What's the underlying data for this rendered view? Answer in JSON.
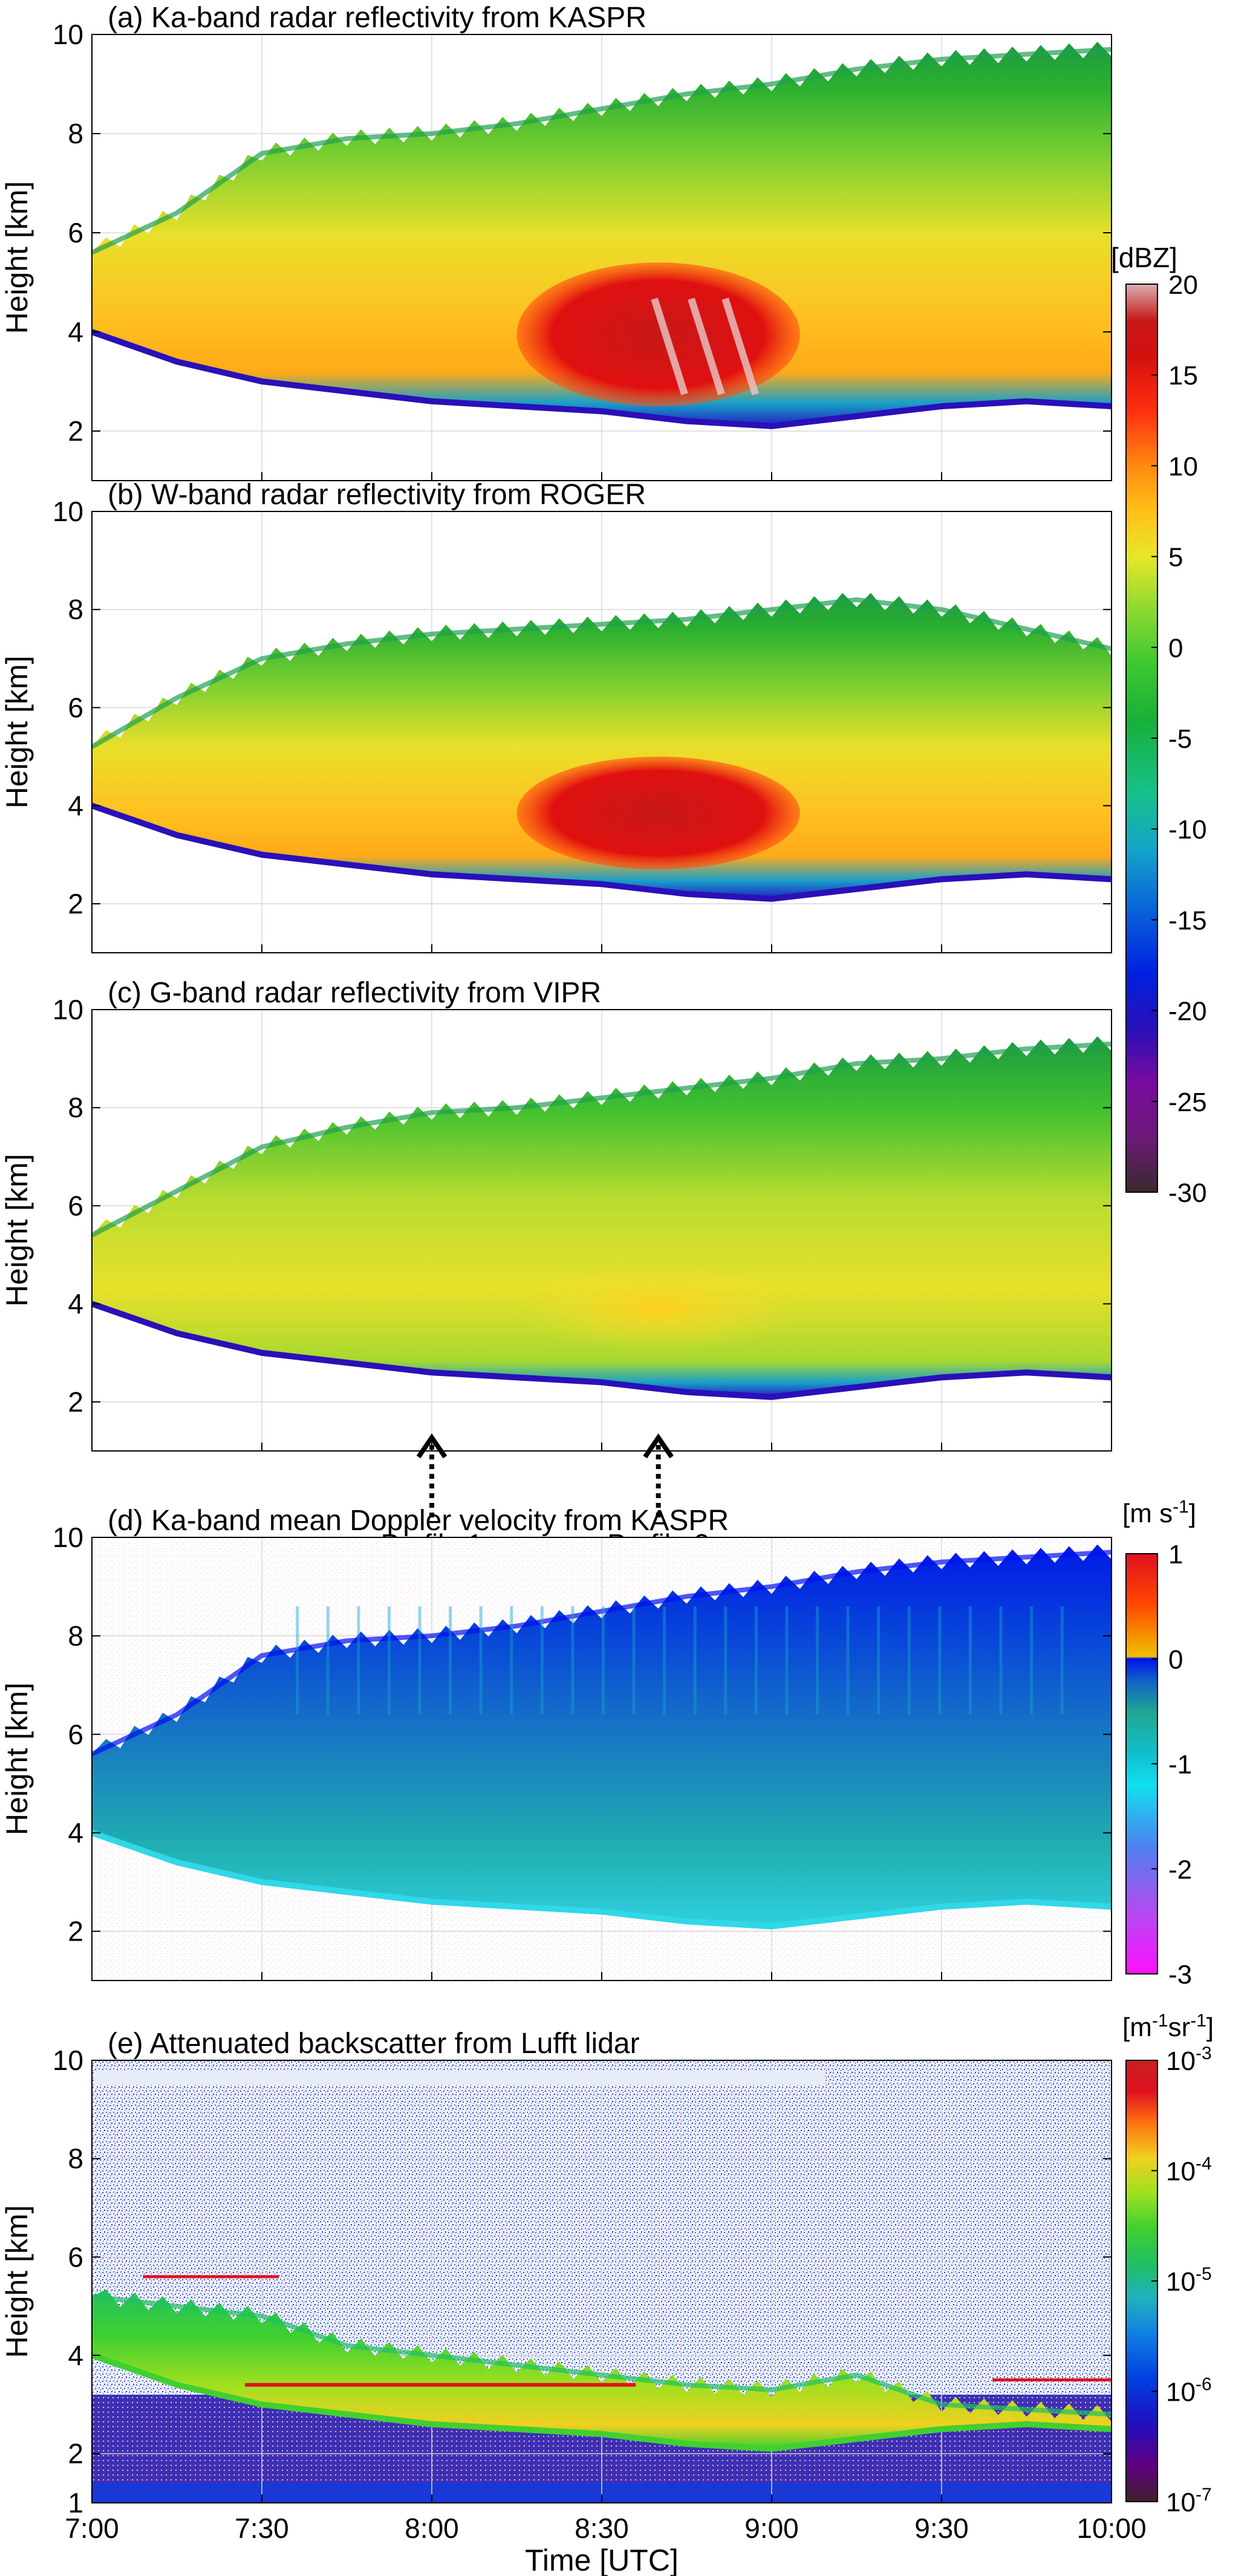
{
  "chart_data": [
    {
      "type": "heatmap",
      "panel": "a",
      "title": "(a) Ka-band radar reflectivity from KASPR",
      "ylabel": "Height [km]",
      "ylim": [
        1,
        10
      ],
      "yticks": [
        2,
        4,
        6,
        8,
        10
      ],
      "xlim": [
        "7:00",
        "10:00"
      ],
      "variable": "reflectivity",
      "units": "dBZ",
      "cloud_top_km": [
        [
          7.0,
          5.6
        ],
        [
          7.25,
          6.4
        ],
        [
          7.5,
          7.6
        ],
        [
          7.75,
          7.9
        ],
        [
          8.0,
          8.0
        ],
        [
          8.25,
          8.2
        ],
        [
          8.5,
          8.5
        ],
        [
          8.75,
          8.8
        ],
        [
          9.0,
          9.0
        ],
        [
          9.25,
          9.3
        ],
        [
          9.5,
          9.5
        ],
        [
          9.75,
          9.6
        ],
        [
          10.0,
          9.7
        ]
      ],
      "cloud_base_km": [
        [
          7.0,
          4.0
        ],
        [
          7.25,
          3.4
        ],
        [
          7.5,
          3.0
        ],
        [
          7.75,
          2.8
        ],
        [
          8.0,
          2.6
        ],
        [
          8.25,
          2.5
        ],
        [
          8.5,
          2.4
        ],
        [
          8.75,
          2.2
        ],
        [
          9.0,
          2.1
        ],
        [
          9.25,
          2.3
        ],
        [
          9.5,
          2.5
        ],
        [
          9.75,
          2.6
        ],
        [
          10.0,
          2.5
        ]
      ],
      "core": {
        "start": "8:15",
        "end": "9:05",
        "bottom_km": 2.5,
        "top_km": 5.4,
        "max_dBZ": 20
      }
    },
    {
      "type": "heatmap",
      "panel": "b",
      "title": "(b) W-band radar reflectivity from ROGER",
      "ylabel": "Height [km]",
      "ylim": [
        1,
        10
      ],
      "yticks": [
        2,
        4,
        6,
        8,
        10
      ],
      "xlim": [
        "7:00",
        "10:00"
      ],
      "variable": "reflectivity",
      "units": "dBZ",
      "cloud_top_km": [
        [
          7.0,
          5.2
        ],
        [
          7.25,
          6.2
        ],
        [
          7.5,
          7.0
        ],
        [
          7.75,
          7.3
        ],
        [
          8.0,
          7.5
        ],
        [
          8.25,
          7.6
        ],
        [
          8.5,
          7.7
        ],
        [
          8.75,
          7.8
        ],
        [
          9.0,
          8.0
        ],
        [
          9.25,
          8.2
        ],
        [
          9.5,
          8.0
        ],
        [
          9.75,
          7.6
        ],
        [
          10.0,
          7.2
        ]
      ],
      "cloud_base_km": [
        [
          7.0,
          4.0
        ],
        [
          7.25,
          3.4
        ],
        [
          7.5,
          3.0
        ],
        [
          7.75,
          2.8
        ],
        [
          8.0,
          2.6
        ],
        [
          8.25,
          2.5
        ],
        [
          8.5,
          2.4
        ],
        [
          8.75,
          2.2
        ],
        [
          9.0,
          2.1
        ],
        [
          9.25,
          2.3
        ],
        [
          9.5,
          2.5
        ],
        [
          9.75,
          2.6
        ],
        [
          10.0,
          2.5
        ]
      ],
      "core": {
        "start": "8:15",
        "end": "9:05",
        "bottom_km": 2.7,
        "top_km": 5.0,
        "max_dBZ": 15
      }
    },
    {
      "type": "heatmap",
      "panel": "c",
      "title": "(c) G-band radar reflectivity from VIPR",
      "ylabel": "Height [km]",
      "ylim": [
        1,
        10
      ],
      "yticks": [
        2,
        4,
        6,
        8,
        10
      ],
      "xlim": [
        "7:00",
        "10:00"
      ],
      "variable": "reflectivity",
      "units": "dBZ",
      "cloud_top_km": [
        [
          7.0,
          5.4
        ],
        [
          7.25,
          6.3
        ],
        [
          7.5,
          7.2
        ],
        [
          7.75,
          7.6
        ],
        [
          8.0,
          7.9
        ],
        [
          8.25,
          8.0
        ],
        [
          8.5,
          8.2
        ],
        [
          8.75,
          8.4
        ],
        [
          9.0,
          8.6
        ],
        [
          9.25,
          8.9
        ],
        [
          9.5,
          9.0
        ],
        [
          9.75,
          9.2
        ],
        [
          10.0,
          9.3
        ]
      ],
      "cloud_base_km": [
        [
          7.0,
          4.0
        ],
        [
          7.25,
          3.4
        ],
        [
          7.5,
          3.0
        ],
        [
          7.75,
          2.8
        ],
        [
          8.0,
          2.6
        ],
        [
          8.25,
          2.5
        ],
        [
          8.5,
          2.4
        ],
        [
          8.75,
          2.2
        ],
        [
          9.0,
          2.1
        ],
        [
          9.25,
          2.3
        ],
        [
          9.5,
          2.5
        ],
        [
          9.75,
          2.6
        ],
        [
          10.0,
          2.5
        ]
      ],
      "core": {
        "start": "8:15",
        "end": "9:05",
        "bottom_km": 3.0,
        "top_km": 4.8,
        "max_dBZ": 5
      },
      "annotations": [
        {
          "label": "Profile 1",
          "time": "8:00"
        },
        {
          "label": "Profile 2",
          "time": "8:40"
        }
      ]
    },
    {
      "type": "heatmap",
      "panel": "d",
      "title": "(d) Ka-band mean Doppler velocity from KASPR",
      "ylabel": "Height [km]",
      "ylim": [
        1,
        10
      ],
      "yticks": [
        2,
        4,
        6,
        8,
        10
      ],
      "xlim": [
        "7:00",
        "10:00"
      ],
      "variable": "mean Doppler velocity",
      "units": "m s-1",
      "cloud_top_km": [
        [
          7.0,
          5.6
        ],
        [
          7.25,
          6.4
        ],
        [
          7.5,
          7.6
        ],
        [
          7.75,
          7.9
        ],
        [
          8.0,
          8.0
        ],
        [
          8.25,
          8.2
        ],
        [
          8.5,
          8.5
        ],
        [
          8.75,
          8.8
        ],
        [
          9.0,
          9.0
        ],
        [
          9.25,
          9.3
        ],
        [
          9.5,
          9.5
        ],
        [
          9.75,
          9.6
        ],
        [
          10.0,
          9.7
        ]
      ],
      "cloud_base_km": [
        [
          7.0,
          4.0
        ],
        [
          7.25,
          3.4
        ],
        [
          7.5,
          3.0
        ],
        [
          7.75,
          2.8
        ],
        [
          8.0,
          2.6
        ],
        [
          8.25,
          2.5
        ],
        [
          8.5,
          2.4
        ],
        [
          8.75,
          2.2
        ],
        [
          9.0,
          2.1
        ],
        [
          9.25,
          2.3
        ],
        [
          9.5,
          2.5
        ],
        [
          9.75,
          2.6
        ],
        [
          10.0,
          2.5
        ]
      ]
    },
    {
      "type": "heatmap",
      "panel": "e",
      "title": "(e) Attenuated backscatter from Lufft lidar",
      "ylabel": "Height [km]",
      "xlabel": "Time [UTC]",
      "ylim": [
        1,
        10
      ],
      "yticks": [
        1,
        2,
        4,
        6,
        8,
        10
      ],
      "xlim": [
        "7:00",
        "10:00"
      ],
      "xticks": [
        "7:00",
        "7:30",
        "8:00",
        "8:30",
        "9:00",
        "9:30",
        "10:00"
      ],
      "variable": "attenuated backscatter",
      "units": "m-1 sr-1",
      "scale": "log",
      "cloud_top_km": [
        [
          7.0,
          5.2
        ],
        [
          7.25,
          5.0
        ],
        [
          7.5,
          4.8
        ],
        [
          7.75,
          4.2
        ],
        [
          8.0,
          4.0
        ],
        [
          8.25,
          3.8
        ],
        [
          8.5,
          3.6
        ],
        [
          8.75,
          3.4
        ],
        [
          9.0,
          3.3
        ],
        [
          9.25,
          3.6
        ],
        [
          9.5,
          3.0
        ],
        [
          9.75,
          2.9
        ],
        [
          10.0,
          2.8
        ]
      ],
      "cloud_base_km": [
        [
          7.0,
          4.0
        ],
        [
          7.25,
          3.4
        ],
        [
          7.5,
          3.0
        ],
        [
          7.75,
          2.8
        ],
        [
          8.0,
          2.6
        ],
        [
          8.25,
          2.5
        ],
        [
          8.5,
          2.4
        ],
        [
          8.75,
          2.2
        ],
        [
          9.0,
          2.1
        ],
        [
          9.25,
          2.3
        ],
        [
          9.5,
          2.5
        ],
        [
          9.75,
          2.6
        ],
        [
          10.0,
          2.5
        ]
      ]
    }
  ],
  "colorbars": [
    {
      "label": "[dBZ]",
      "ticks": [
        "20",
        "15",
        "10",
        "5",
        "0",
        "-5",
        "-10",
        "-15",
        "-20",
        "-25",
        "-30"
      ],
      "range": [
        -30,
        20
      ]
    },
    {
      "label_base": "[m s",
      "label_sup": "-1",
      "label_end": "]",
      "ticks": [
        "1",
        "0",
        "-1",
        "-2",
        "-3"
      ],
      "range": [
        -3,
        1
      ]
    },
    {
      "label_base": "[m",
      "label_sup1": "-1",
      "label_mid": "sr",
      "label_sup2": "-1",
      "label_end": "]",
      "ticks": [
        {
          "base": "10",
          "exp": "-3"
        },
        {
          "base": "10",
          "exp": "-4"
        },
        {
          "base": "10",
          "exp": "-5"
        },
        {
          "base": "10",
          "exp": "-6"
        },
        {
          "base": "10",
          "exp": "-7"
        }
      ],
      "range_log10": [
        -7,
        -3
      ]
    }
  ],
  "colors": {
    "reflectivity_ramp": [
      "#3a2a2e",
      "#6b1a78",
      "#7a0aa0",
      "#2a10b8",
      "#0020e0",
      "#0a6cd8",
      "#14a6c8",
      "#16c08a",
      "#18b038",
      "#3cc830",
      "#8ad832",
      "#e8e628",
      "#ffc018",
      "#ff8a10",
      "#ff3010",
      "#d41010",
      "#c81818",
      "#d8b0b0"
    ],
    "doppler_ramp": [
      "#ff10ff",
      "#b04cf0",
      "#5080f0",
      "#10e0f0",
      "#10c0d0",
      "#20a890",
      "#1060c8",
      "#0010f0",
      "#f0c000",
      "#ff4800",
      "#e01020"
    ],
    "lidar_ramp": [
      "#40202c",
      "#600080",
      "#2010c0",
      "#0040e0",
      "#1080e0",
      "#20b0c0",
      "#20c060",
      "#40d030",
      "#a0e020",
      "#f0d020",
      "#ff7010",
      "#e01020",
      "#c82020"
    ]
  }
}
